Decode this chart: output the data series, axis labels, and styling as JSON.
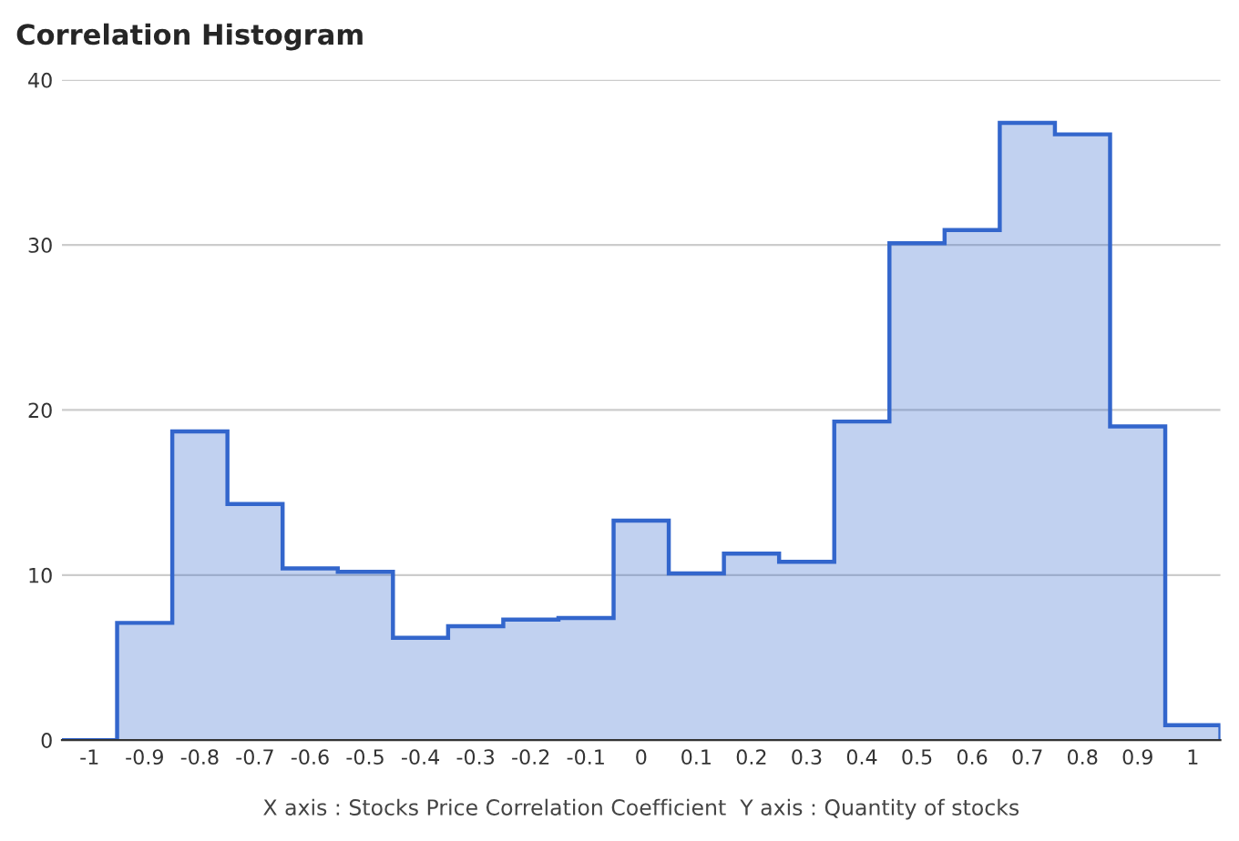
{
  "chart_data": {
    "type": "histogram",
    "title": "Correlation Histogram",
    "xlabel": "X axis : Stocks Price Correlation Coefficient  Y axis : Quantity of stocks",
    "bins": [
      -1.05,
      -0.95,
      -0.85,
      -0.75,
      -0.65,
      -0.55,
      -0.45,
      -0.35,
      -0.25,
      -0.15,
      -0.05,
      0.05,
      0.15,
      0.25,
      0.35,
      0.45,
      0.55,
      0.65,
      0.75,
      0.85,
      0.95,
      1.05
    ],
    "values": [
      0,
      7.1,
      18.7,
      14.3,
      10.4,
      10.2,
      6.2,
      6.9,
      7.3,
      7.4,
      13.3,
      10.1,
      11.3,
      10.8,
      19.3,
      30.1,
      30.9,
      37.4,
      36.7,
      19.0,
      0.9
    ],
    "color": "#3366cc",
    "xlim": [
      -1.05,
      1.05
    ],
    "xticks": [
      -1,
      -0.9,
      -0.8,
      -0.7,
      -0.6,
      -0.5,
      -0.4,
      -0.3,
      -0.2,
      -0.1,
      0,
      0.1,
      0.2,
      0.3,
      0.4,
      0.5,
      0.6,
      0.7,
      0.8,
      0.9,
      1
    ],
    "ylim": [
      0,
      40
    ],
    "yticks": [
      0,
      10,
      20,
      30,
      40
    ],
    "grid": "y"
  }
}
